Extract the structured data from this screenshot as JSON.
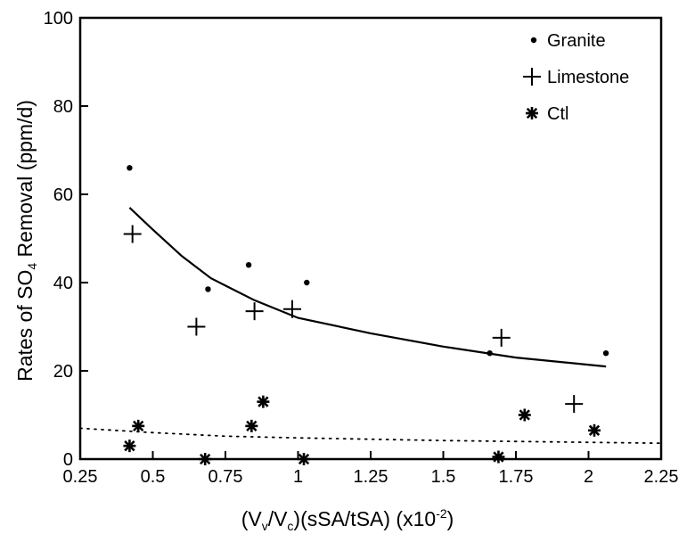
{
  "chart_data": {
    "type": "scatter",
    "xlabel": "(Vv/Vc)(sSA/tSA) (x10-2)",
    "xlabel_parts": {
      "pre": "(V",
      "sub1": "v",
      "mid": "/V",
      "sub2": "c",
      "post": ")(sSA/tSA) (x10",
      "sup": "-2",
      "end": ")"
    },
    "ylabel": "Rates of SO4 Removal (ppm/d)",
    "ylabel_parts": {
      "pre": "Rates of SO",
      "sub": "4",
      "post": " Removal (ppm/d)"
    },
    "xlim": [
      0.25,
      2.25
    ],
    "ylim": [
      0,
      100
    ],
    "x_ticks": [
      0.25,
      0.5,
      0.75,
      1,
      1.25,
      1.5,
      1.75,
      2,
      2.25
    ],
    "x_tick_labels": [
      "0.25",
      "0.5",
      "0.75",
      "1",
      "1.25",
      "1.5",
      "1.75",
      "2",
      "2.25"
    ],
    "y_ticks": [
      0,
      20,
      40,
      60,
      80,
      100
    ],
    "y_tick_labels": [
      "0",
      "20",
      "40",
      "60",
      "80",
      "100"
    ],
    "grid": false,
    "legend_position": "top-right",
    "series": [
      {
        "name": "Granite",
        "marker": "dot",
        "points": [
          [
            0.42,
            66
          ],
          [
            0.69,
            38.5
          ],
          [
            0.83,
            44
          ],
          [
            1.03,
            40
          ],
          [
            1.66,
            24
          ],
          [
            2.06,
            24
          ]
        ]
      },
      {
        "name": "Limestone",
        "marker": "plus",
        "points": [
          [
            0.43,
            51
          ],
          [
            0.65,
            30
          ],
          [
            0.85,
            33.5
          ],
          [
            0.98,
            34
          ],
          [
            1.7,
            27.5
          ],
          [
            1.95,
            12.5
          ]
        ]
      },
      {
        "name": "Ctl",
        "marker": "asterisk",
        "points": [
          [
            0.42,
            3
          ],
          [
            0.45,
            7.5
          ],
          [
            0.68,
            0
          ],
          [
            0.84,
            7.5
          ],
          [
            0.88,
            13
          ],
          [
            1.02,
            0
          ],
          [
            1.69,
            0.5
          ],
          [
            1.78,
            10
          ],
          [
            2.02,
            6.5
          ]
        ]
      }
    ],
    "fit_lines": [
      {
        "style": "solid",
        "points": [
          [
            0.42,
            57
          ],
          [
            0.5,
            52
          ],
          [
            0.6,
            46
          ],
          [
            0.7,
            41
          ],
          [
            0.85,
            36
          ],
          [
            1.0,
            32
          ],
          [
            1.25,
            28.5
          ],
          [
            1.5,
            25.5
          ],
          [
            1.75,
            23
          ],
          [
            2.06,
            21
          ]
        ]
      },
      {
        "style": "dotted",
        "points": [
          [
            0.25,
            7
          ],
          [
            0.5,
            6
          ],
          [
            0.75,
            5.2
          ],
          [
            1.0,
            4.8
          ],
          [
            1.25,
            4.5
          ],
          [
            1.5,
            4.2
          ],
          [
            1.75,
            4.0
          ],
          [
            2.0,
            3.8
          ],
          [
            2.25,
            3.6
          ]
        ]
      }
    ]
  }
}
